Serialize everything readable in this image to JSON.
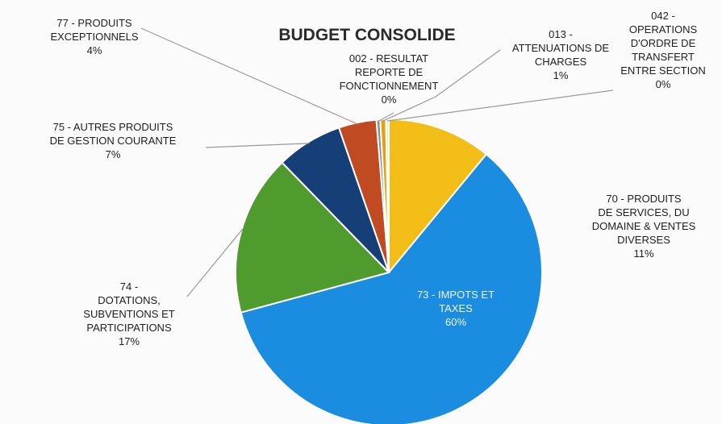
{
  "chart_data": {
    "type": "pie",
    "title": "BUDGET CONSOLIDE",
    "slices": [
      {
        "code": "70",
        "label_lines": [
          "70        - PRODUITS",
          "DE SERVICES, DU",
          "DOMAINE & VENTES",
          "DIVERSES"
        ],
        "percent_text": "11%",
        "value": 11,
        "color": "#f2bd16",
        "label_side": "outside-right"
      },
      {
        "code": "73",
        "label_lines": [
          "73           - IMPOTS ET",
          "TAXES"
        ],
        "percent_text": "60%",
        "value": 60,
        "color": "#1b8de0",
        "label_side": "inside"
      },
      {
        "code": "74",
        "label_lines": [
          "74           -",
          "DOTATIONS,",
          "SUBVENTIONS ET",
          "PARTICIPATIONS"
        ],
        "percent_text": "17%",
        "value": 17,
        "color": "#4f9b2e",
        "label_side": "outside-left"
      },
      {
        "code": "75",
        "label_lines": [
          "75        - AUTRES PRODUITS",
          "DE GESTION COURANTE"
        ],
        "percent_text": "7%",
        "value": 7,
        "color": "#163f77",
        "label_side": "outside-left"
      },
      {
        "code": "77",
        "label_lines": [
          "77           - PRODUITS",
          "EXCEPTIONNELS"
        ],
        "percent_text": "4%",
        "value": 4,
        "color": "#c04a22",
        "label_side": "outside-left"
      },
      {
        "code": "002",
        "label_lines": [
          "002        - RESULTAT",
          "REPORTE DE",
          "FONCTIONNEMENT"
        ],
        "percent_text": "0%",
        "value": 0.4,
        "color": "#8c8c8c",
        "label_side": "outside-top"
      },
      {
        "code": "013",
        "label_lines": [
          "013        -",
          "ATTENUATIONS DE",
          "CHARGES"
        ],
        "percent_text": "1%",
        "value": 0.6,
        "color": "#e8a013",
        "label_side": "outside-top"
      },
      {
        "code": "042",
        "label_lines": [
          "042        -",
          "OPERATIONS",
          "D'ORDRE DE",
          "TRANSFERT",
          "ENTRE SECTION"
        ],
        "percent_text": "0%",
        "value": 0.3,
        "color": "#e6e6e6",
        "label_side": "outside-top-right"
      }
    ]
  }
}
